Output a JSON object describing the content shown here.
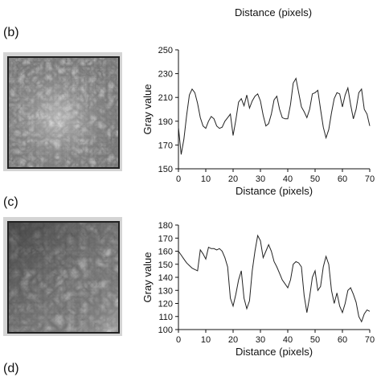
{
  "top_caption": "Distance (pixels)",
  "panels": {
    "b": "(b)",
    "c": "(c)",
    "d": "(d)"
  },
  "chart_data": [
    {
      "type": "line",
      "xlabel": "Distance (pixels)",
      "ylabel": "Gray value",
      "xlim": [
        0,
        70
      ],
      "ylim": [
        150,
        250
      ],
      "xticks": [
        0,
        10,
        20,
        30,
        40,
        50,
        60,
        70
      ],
      "yticks": [
        150,
        170,
        190,
        210,
        230,
        250
      ],
      "grid": false,
      "series": [
        {
          "x": [
            0,
            1,
            2,
            3,
            4,
            5,
            6,
            7,
            8,
            9,
            10,
            11,
            12,
            13,
            14,
            15,
            16,
            17,
            18,
            19,
            20,
            21,
            22,
            23,
            24,
            25,
            26,
            27,
            28,
            29,
            30,
            31,
            32,
            33,
            34,
            35,
            36,
            37,
            38,
            39,
            40,
            41,
            42,
            43,
            44,
            45,
            46,
            47,
            48,
            49,
            50,
            51,
            52,
            53,
            54,
            55,
            56,
            57,
            58,
            59,
            60,
            61,
            62,
            63,
            64,
            65,
            66,
            67,
            68,
            69,
            70
          ],
          "values": [
            185,
            162,
            175,
            195,
            212,
            217,
            214,
            205,
            193,
            186,
            184,
            190,
            194,
            192,
            186,
            184,
            185,
            190,
            193,
            196,
            178,
            191,
            206,
            209,
            203,
            212,
            201,
            207,
            211,
            213,
            207,
            195,
            186,
            188,
            196,
            208,
            211,
            200,
            193,
            192,
            192,
            204,
            222,
            226,
            214,
            202,
            198,
            193,
            200,
            213,
            214,
            216,
            200,
            185,
            176,
            183,
            197,
            209,
            214,
            213,
            202,
            212,
            218,
            204,
            192,
            200,
            214,
            217,
            200,
            196,
            186
          ]
        }
      ]
    },
    {
      "type": "line",
      "xlabel": "Distance (pixels)",
      "ylabel": "Gray value",
      "xlim": [
        0,
        70
      ],
      "ylim": [
        100,
        180
      ],
      "xticks": [
        0,
        10,
        20,
        30,
        40,
        50,
        60,
        70
      ],
      "yticks": [
        100,
        110,
        120,
        130,
        140,
        150,
        160,
        170,
        180
      ],
      "grid": false,
      "series": [
        {
          "x": [
            0,
            1,
            2,
            3,
            4,
            5,
            6,
            7,
            8,
            9,
            10,
            11,
            12,
            13,
            14,
            15,
            16,
            17,
            18,
            19,
            20,
            21,
            22,
            23,
            24,
            25,
            26,
            27,
            28,
            29,
            30,
            31,
            32,
            33,
            34,
            35,
            36,
            37,
            38,
            39,
            40,
            41,
            42,
            43,
            44,
            45,
            46,
            47,
            48,
            49,
            50,
            51,
            52,
            53,
            54,
            55,
            56,
            57,
            58,
            59,
            60,
            61,
            62,
            63,
            64,
            65,
            66,
            67,
            68,
            69,
            70
          ],
          "values": [
            160,
            157,
            154,
            151,
            149,
            147,
            146,
            145,
            161,
            158,
            154,
            163,
            162,
            162,
            161,
            162,
            160,
            155,
            148,
            124,
            118,
            127,
            138,
            145,
            124,
            116,
            122,
            145,
            160,
            172,
            168,
            155,
            160,
            165,
            160,
            152,
            148,
            143,
            138,
            135,
            132,
            138,
            150,
            152,
            151,
            148,
            126,
            113,
            125,
            140,
            145,
            130,
            133,
            148,
            156,
            150,
            130,
            120,
            128,
            118,
            113,
            120,
            130,
            132,
            127,
            121,
            110,
            106,
            112,
            115,
            114
          ]
        }
      ]
    }
  ]
}
